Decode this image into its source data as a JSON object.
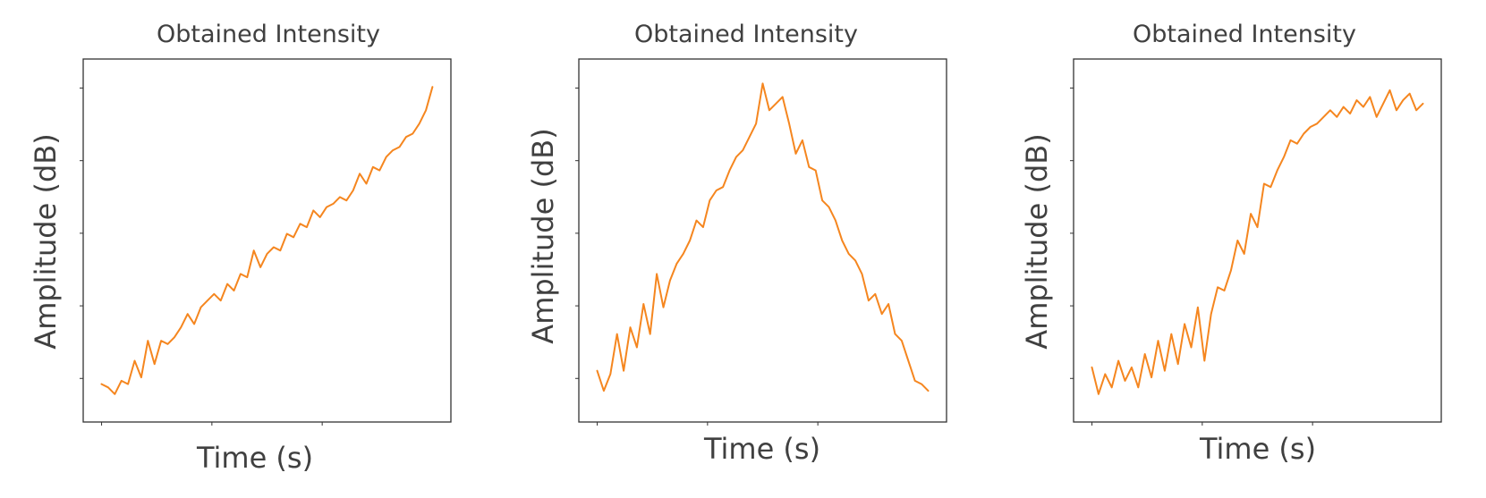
{
  "colors": {
    "series": "#f5861f",
    "frame": "#333333",
    "text": "#404040"
  },
  "chart_data": [
    {
      "type": "line",
      "title": "Obtained Intensity",
      "xlabel": "Time (s)",
      "ylabel": "Amplitude (dB)",
      "xlim": [
        0,
        1
      ],
      "ylim": [
        0,
        1
      ],
      "grid": false,
      "ticks_unlabeled": true,
      "series": [
        {
          "x": [
            0.0,
            0.02,
            0.04,
            0.06,
            0.08,
            0.1,
            0.12,
            0.14,
            0.16,
            0.18,
            0.2,
            0.22,
            0.24,
            0.26,
            0.28,
            0.3,
            0.32,
            0.34,
            0.36,
            0.38,
            0.4,
            0.42,
            0.44,
            0.46,
            0.48,
            0.5,
            0.52,
            0.54,
            0.56,
            0.58,
            0.6,
            0.62,
            0.64,
            0.66,
            0.68,
            0.7,
            0.72,
            0.74,
            0.76,
            0.78,
            0.8,
            0.82,
            0.84,
            0.86,
            0.88,
            0.9,
            0.92,
            0.94,
            0.96,
            0.98,
            1.0
          ],
          "y": [
            0.07,
            0.06,
            0.04,
            0.08,
            0.07,
            0.14,
            0.09,
            0.2,
            0.13,
            0.2,
            0.19,
            0.21,
            0.24,
            0.28,
            0.25,
            0.3,
            0.32,
            0.34,
            0.32,
            0.37,
            0.35,
            0.4,
            0.39,
            0.47,
            0.42,
            0.46,
            0.48,
            0.47,
            0.52,
            0.51,
            0.55,
            0.54,
            0.59,
            0.57,
            0.6,
            0.61,
            0.63,
            0.62,
            0.65,
            0.7,
            0.67,
            0.72,
            0.71,
            0.75,
            0.77,
            0.78,
            0.81,
            0.82,
            0.85,
            0.89,
            0.96
          ]
        }
      ]
    },
    {
      "type": "line",
      "title": "Obtained Intensity",
      "xlabel": "Time (s)",
      "ylabel": "Amplitude (dB)",
      "xlim": [
        0,
        1
      ],
      "ylim": [
        0,
        1
      ],
      "grid": false,
      "ticks_unlabeled": true,
      "series": [
        {
          "x": [
            0.0,
            0.02,
            0.04,
            0.06,
            0.08,
            0.1,
            0.12,
            0.14,
            0.16,
            0.18,
            0.2,
            0.22,
            0.24,
            0.26,
            0.28,
            0.3,
            0.32,
            0.34,
            0.36,
            0.38,
            0.4,
            0.42,
            0.44,
            0.46,
            0.48,
            0.5,
            0.52,
            0.54,
            0.56,
            0.58,
            0.6,
            0.62,
            0.64,
            0.66,
            0.68,
            0.7,
            0.72,
            0.74,
            0.76,
            0.78,
            0.8,
            0.82,
            0.84,
            0.86,
            0.88,
            0.9,
            0.92,
            0.94,
            0.96,
            0.98,
            1.0
          ],
          "y": [
            0.11,
            0.05,
            0.1,
            0.22,
            0.11,
            0.24,
            0.18,
            0.31,
            0.22,
            0.4,
            0.3,
            0.38,
            0.43,
            0.46,
            0.5,
            0.56,
            0.54,
            0.62,
            0.65,
            0.66,
            0.71,
            0.75,
            0.77,
            0.81,
            0.85,
            0.97,
            0.89,
            0.91,
            0.93,
            0.85,
            0.76,
            0.8,
            0.72,
            0.71,
            0.62,
            0.6,
            0.56,
            0.5,
            0.46,
            0.44,
            0.4,
            0.32,
            0.34,
            0.28,
            0.31,
            0.22,
            0.2,
            0.14,
            0.08,
            0.07,
            0.05
          ]
        }
      ]
    },
    {
      "type": "line",
      "title": "Obtained Intensity",
      "xlabel": "Time (s)",
      "ylabel": "Amplitude (dB)",
      "xlim": [
        0,
        1
      ],
      "ylim": [
        0,
        1
      ],
      "grid": false,
      "ticks_unlabeled": true,
      "series": [
        {
          "x": [
            0.0,
            0.02,
            0.04,
            0.06,
            0.08,
            0.1,
            0.12,
            0.14,
            0.16,
            0.18,
            0.2,
            0.22,
            0.24,
            0.26,
            0.28,
            0.3,
            0.32,
            0.34,
            0.36,
            0.38,
            0.4,
            0.42,
            0.44,
            0.46,
            0.48,
            0.5,
            0.52,
            0.54,
            0.56,
            0.58,
            0.6,
            0.62,
            0.64,
            0.66,
            0.68,
            0.7,
            0.72,
            0.74,
            0.76,
            0.78,
            0.8,
            0.82,
            0.84,
            0.86,
            0.88,
            0.9,
            0.92,
            0.94,
            0.96,
            0.98,
            1.0
          ],
          "y": [
            0.12,
            0.04,
            0.1,
            0.06,
            0.14,
            0.08,
            0.12,
            0.06,
            0.16,
            0.09,
            0.2,
            0.11,
            0.22,
            0.13,
            0.25,
            0.18,
            0.3,
            0.14,
            0.28,
            0.36,
            0.35,
            0.41,
            0.5,
            0.46,
            0.58,
            0.54,
            0.67,
            0.66,
            0.71,
            0.75,
            0.8,
            0.79,
            0.82,
            0.84,
            0.85,
            0.87,
            0.89,
            0.87,
            0.9,
            0.88,
            0.92,
            0.9,
            0.93,
            0.87,
            0.91,
            0.95,
            0.89,
            0.92,
            0.94,
            0.89,
            0.91
          ]
        }
      ]
    }
  ]
}
